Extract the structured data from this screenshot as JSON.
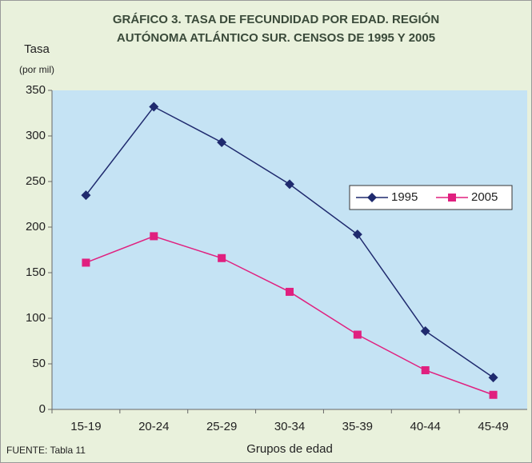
{
  "chart_data": {
    "type": "line",
    "title": [
      "GRÁFICO 3. TASA DE FECUNDIDAD POR EDAD. REGIÓN",
      "AUTÓNOMA ATLÁNTICO SUR. CENSOS DE 1995 Y 2005"
    ],
    "y_label": [
      "Tasa",
      "(por mil)"
    ],
    "x_label": "Grupos de edad",
    "source": "FUENTE: Tabla 11",
    "categories": [
      "15-19",
      "20-24",
      "25-29",
      "30-34",
      "35-39",
      "40-44",
      "45-49"
    ],
    "series": [
      {
        "name": "1995",
        "color": "#1f2a6e",
        "marker": "diamond",
        "values": [
          235,
          332,
          293,
          247,
          192,
          86,
          35
        ]
      },
      {
        "name": "2005",
        "color": "#e0207f",
        "marker": "square",
        "values": [
          161,
          190,
          166,
          129,
          82,
          43,
          16
        ]
      }
    ],
    "ylim": [
      0,
      350
    ],
    "yticks": [
      0,
      50,
      100,
      150,
      200,
      250,
      300,
      350
    ],
    "grid": false,
    "legend": "right"
  }
}
